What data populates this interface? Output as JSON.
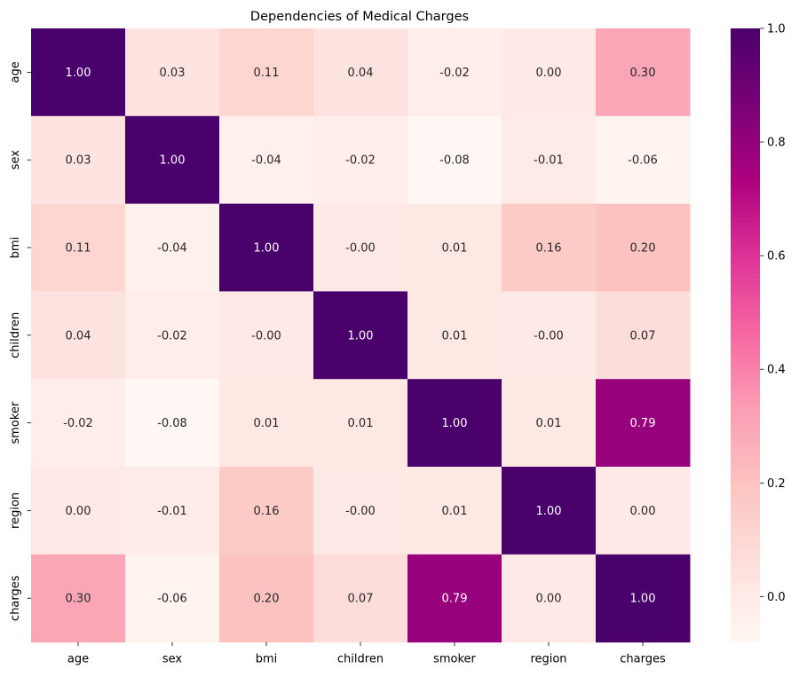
{
  "chart_data": {
    "type": "heatmap",
    "title": "Dependencies of Medical Charges",
    "xlabel": "",
    "ylabel": "",
    "x_categories": [
      "age",
      "sex",
      "bmi",
      "children",
      "smoker",
      "region",
      "charges"
    ],
    "y_categories": [
      "age",
      "sex",
      "bmi",
      "children",
      "smoker",
      "region",
      "charges"
    ],
    "values": [
      [
        1.0,
        0.03,
        0.11,
        0.04,
        -0.02,
        0.0,
        0.3
      ],
      [
        0.03,
        1.0,
        -0.04,
        -0.02,
        -0.08,
        -0.01,
        -0.06
      ],
      [
        0.11,
        -0.04,
        1.0,
        -0.0,
        0.01,
        0.16,
        0.2
      ],
      [
        0.04,
        -0.02,
        -0.0,
        1.0,
        0.01,
        -0.0,
        0.07
      ],
      [
        -0.02,
        -0.08,
        0.01,
        0.01,
        1.0,
        0.01,
        0.79
      ],
      [
        0.0,
        -0.01,
        0.16,
        -0.0,
        0.01,
        1.0,
        0.0
      ],
      [
        0.3,
        -0.06,
        0.2,
        0.07,
        0.79,
        0.0,
        1.0
      ]
    ],
    "annotations": [
      [
        "1.00",
        "0.03",
        "0.11",
        "0.04",
        "-0.02",
        "0.00",
        "0.30"
      ],
      [
        "0.03",
        "1.00",
        "-0.04",
        "-0.02",
        "-0.08",
        "-0.01",
        "-0.06"
      ],
      [
        "0.11",
        "-0.04",
        "1.00",
        "-0.00",
        "0.01",
        "0.16",
        "0.20"
      ],
      [
        "0.04",
        "-0.02",
        "-0.00",
        "1.00",
        "0.01",
        "-0.00",
        "0.07"
      ],
      [
        "-0.02",
        "-0.08",
        "0.01",
        "0.01",
        "1.00",
        "0.01",
        "0.79"
      ],
      [
        "0.00",
        "-0.01",
        "0.16",
        "-0.00",
        "0.01",
        "1.00",
        "0.00"
      ],
      [
        "0.30",
        "-0.06",
        "0.20",
        "0.07",
        "0.79",
        "0.00",
        "1.00"
      ]
    ],
    "colormap": "RdPu",
    "color_range": [
      -0.08,
      1.0
    ],
    "colorbar": {
      "ticks": [
        0.0,
        0.2,
        0.4,
        0.6,
        0.8,
        1.0
      ],
      "tick_labels": [
        "0.0",
        "0.2",
        "0.4",
        "0.6",
        "0.8",
        "1.0"
      ]
    },
    "grid": false,
    "legend": "colorbar-right"
  }
}
